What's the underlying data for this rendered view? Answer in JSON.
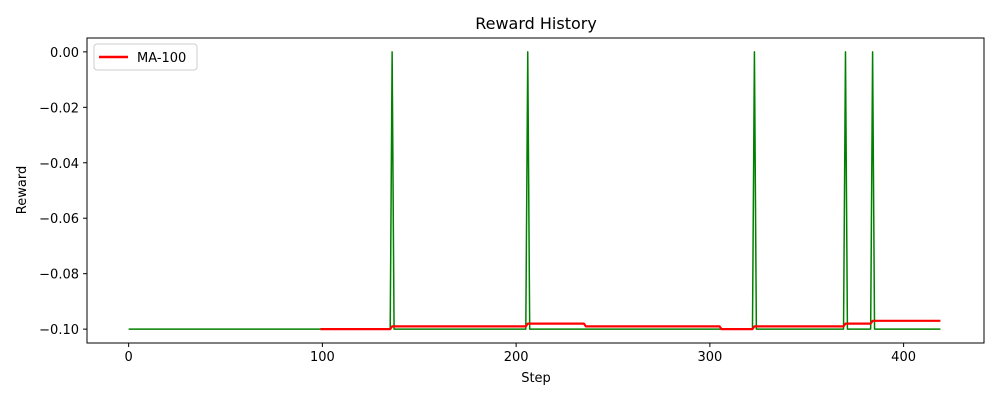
{
  "chart_data": {
    "type": "line",
    "title": "Reward History",
    "xlabel": "Step",
    "ylabel": "Reward",
    "xlim": [
      -21.5,
      441.5
    ],
    "ylim": [
      -0.105,
      0.005
    ],
    "xticks": [
      0,
      100,
      200,
      300,
      400
    ],
    "xtick_labels": [
      "0",
      "100",
      "200",
      "300",
      "400"
    ],
    "yticks": [
      0.0,
      -0.02,
      -0.04,
      -0.06,
      -0.08,
      -0.1
    ],
    "ytick_labels": [
      "0.00",
      "−0.02",
      "−0.04",
      "−0.06",
      "−0.08",
      "−0.10"
    ],
    "legend": {
      "placement": "upper-left",
      "entries": [
        {
          "label": "MA-100",
          "color": "#ff0000"
        }
      ]
    },
    "series": [
      {
        "role": "raw",
        "color": "#008000",
        "x": [
          0,
          135,
          136,
          137,
          205,
          206,
          207,
          322,
          323,
          324,
          369,
          370,
          371,
          383,
          384,
          385,
          419
        ],
        "y": [
          -0.1,
          -0.1,
          0.0,
          -0.1,
          -0.1,
          0.0,
          -0.1,
          -0.1,
          0.0,
          -0.1,
          -0.1,
          0.0,
          -0.1,
          -0.1,
          0.0,
          -0.1,
          -0.1
        ]
      },
      {
        "name": "MA-100",
        "color": "#ff0000",
        "x": [
          99,
          135,
          136,
          205,
          206,
          235,
          236,
          305,
          306,
          322,
          323,
          369,
          370,
          383,
          384,
          419
        ],
        "y": [
          -0.1,
          -0.1,
          -0.099,
          -0.099,
          -0.098,
          -0.098,
          -0.099,
          -0.099,
          -0.1,
          -0.1,
          -0.099,
          -0.099,
          -0.098,
          -0.098,
          -0.097,
          -0.097
        ]
      }
    ]
  }
}
